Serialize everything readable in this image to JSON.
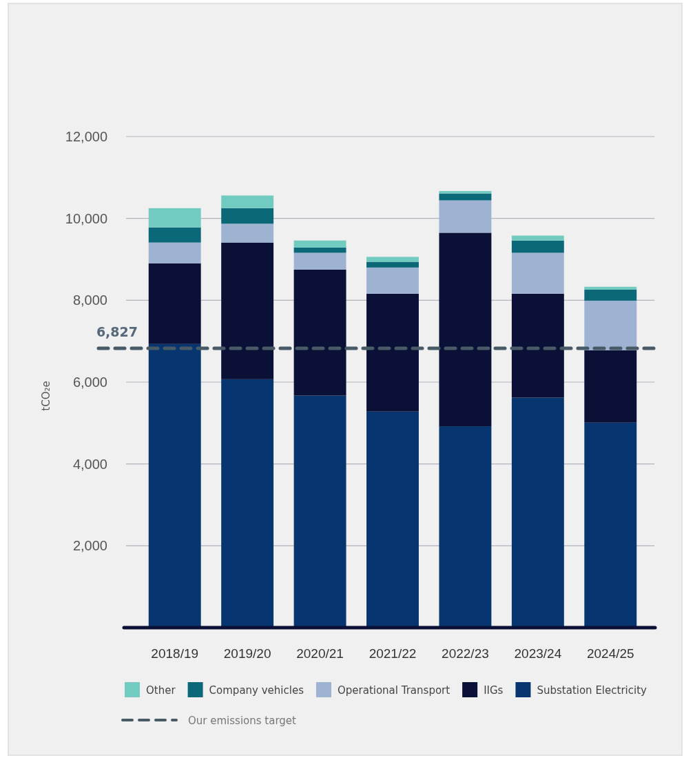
{
  "chart_data": {
    "type": "bar",
    "stacked": true,
    "ylabel": "tCO₂e",
    "categories": [
      "2018/19",
      "2019/20",
      "2020/21",
      "2021/22",
      "2022/23",
      "2023/24",
      "2024/25"
    ],
    "series": [
      {
        "name": "Substation Electricity",
        "color": "#06356f",
        "values": [
          6930,
          6070,
          5670,
          5280,
          4920,
          5620,
          5010
        ]
      },
      {
        "name": "IIGs",
        "color": "#0a1036",
        "values": [
          1970,
          3340,
          3080,
          2880,
          4730,
          2540,
          1770
        ]
      },
      {
        "name": "Operational Transport",
        "color": "#9eb3d2",
        "values": [
          510,
          460,
          410,
          640,
          790,
          1000,
          1210
        ]
      },
      {
        "name": "Company vehicles",
        "color": "#0b6878",
        "values": [
          370,
          380,
          130,
          140,
          170,
          300,
          270
        ]
      },
      {
        "name": "Other",
        "color": "#72cbc1",
        "values": [
          470,
          310,
          170,
          120,
          60,
          120,
          70
        ]
      }
    ],
    "ylim": [
      0,
      12000
    ],
    "yticks": [
      {
        "value": 2000,
        "label": "2,000"
      },
      {
        "value": 4000,
        "label": "4,000"
      },
      {
        "value": 6000,
        "label": "6,000"
      },
      {
        "value": 8000,
        "label": "8,000"
      },
      {
        "value": 10000,
        "label": "10,000"
      },
      {
        "value": 12000,
        "label": "12,000"
      }
    ],
    "grid": "y",
    "legend": "bottom",
    "ref_lines": [
      {
        "axis": "y",
        "value": 6827,
        "label": "6,827",
        "color": "#475a66",
        "line_style": "dashed"
      }
    ],
    "annotations": [
      "Our emissions target"
    ]
  }
}
